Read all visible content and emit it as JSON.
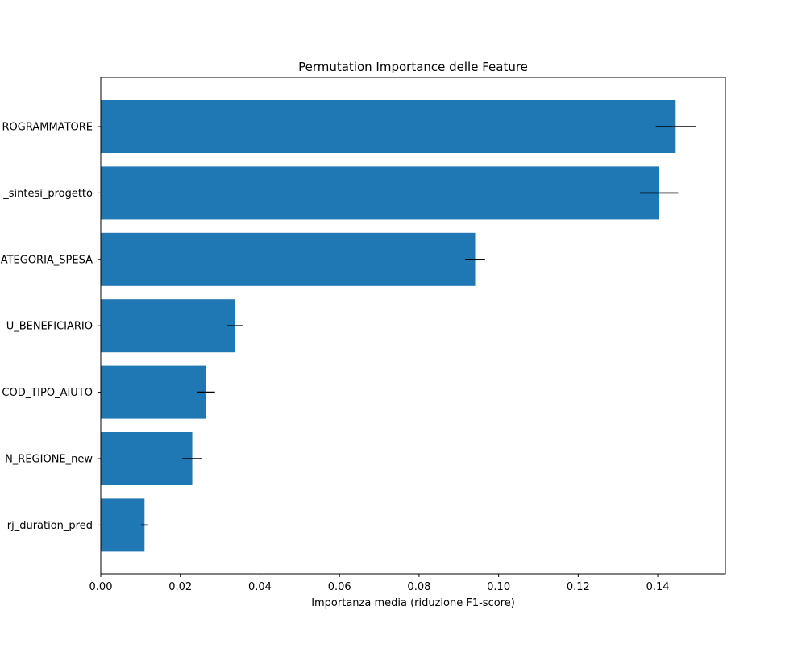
{
  "chart_data": {
    "type": "bar",
    "orientation": "horizontal",
    "title": "Permutation Importance delle Feature",
    "xlabel": "Importanza media (riduzione F1-score)",
    "ylabel": "",
    "xlim": [
      0.0,
      0.157
    ],
    "xticks": [
      0.0,
      0.02,
      0.04,
      0.06,
      0.08,
      0.1,
      0.12,
      0.14
    ],
    "xtick_labels": [
      "0.00",
      "0.02",
      "0.04",
      "0.06",
      "0.08",
      "0.10",
      "0.12",
      "0.14"
    ],
    "categories": [
      "ROGRAMMATORE",
      "_sintesi_progetto",
      "ATEGORIA_SPESA",
      "U_BENEFICIARIO",
      "COD_TIPO_AIUTO",
      "N_REGIONE_new",
      "rj_duration_pred"
    ],
    "values": [
      0.1445,
      0.1403,
      0.0941,
      0.0338,
      0.0265,
      0.023,
      0.011
    ],
    "errors": [
      0.005,
      0.0048,
      0.0025,
      0.002,
      0.0022,
      0.0025,
      0.0009
    ],
    "grid": false,
    "legend": "none",
    "colors": {
      "bar": "#1f77b4",
      "errorbar": "#000000",
      "axis": "#000000"
    }
  }
}
